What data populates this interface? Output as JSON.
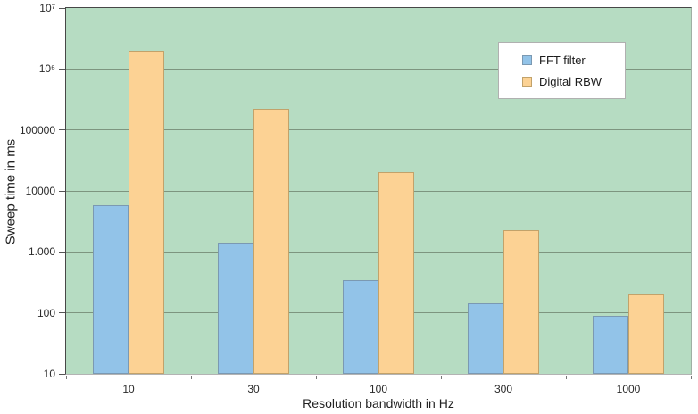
{
  "chart_data": {
    "type": "bar",
    "scale": "log",
    "title": "",
    "xlabel": "Resolution bandwidth in Hz",
    "ylabel": "Sweep time in ms",
    "categories": [
      "10",
      "30",
      "100",
      "300",
      "1000"
    ],
    "series": [
      {
        "name": "FFT filter",
        "color": "#92c3e8",
        "border": "#7b99b2",
        "values": [
          5800,
          1400,
          350,
          145,
          90
        ]
      },
      {
        "name": "Digital RBW",
        "color": "#fcd294",
        "border": "#c2a26a",
        "values": [
          2000000,
          220000,
          20000,
          2300,
          200
        ]
      }
    ],
    "ylim": [
      10,
      10000000
    ],
    "y_tick_labels": [
      "10⁷",
      "10⁶",
      "100000",
      "10000",
      "1.000",
      "100",
      "10"
    ],
    "grid": true,
    "legend_position": "top-right",
    "plot_background": "#b6dcc2",
    "gridline_color": "#7d957f"
  }
}
